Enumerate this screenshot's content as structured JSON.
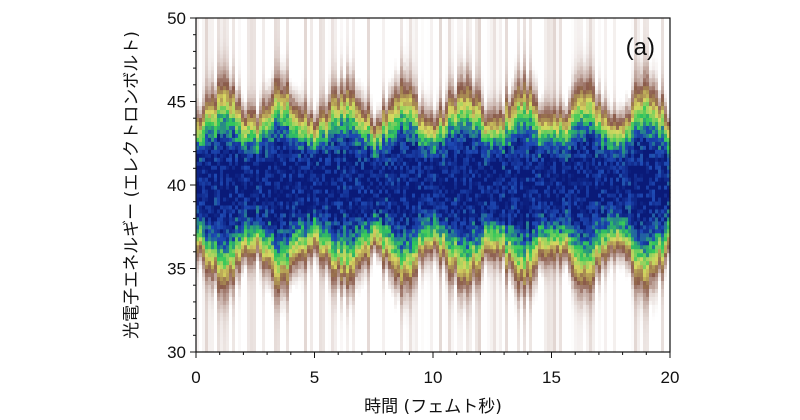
{
  "chart_data": {
    "type": "heatmap",
    "panel_label": "(a)",
    "xlabel": "時間 (フェムト秒)",
    "ylabel": "光電子エネルギー (エレクトロンボルト)",
    "xlim": [
      0,
      20
    ],
    "ylim": [
      30,
      50
    ],
    "x_ticks": [
      0,
      5,
      10,
      15,
      20
    ],
    "y_ticks": [
      30,
      35,
      40,
      45,
      50
    ],
    "grid": false,
    "colormap": [
      "#ffffff",
      "#8a5a4a",
      "#d8d860",
      "#32c85a",
      "#1e4ab4",
      "#0a1a78"
    ],
    "band": {
      "center_ev": 40,
      "half_width_min_ev": 3.2,
      "half_width_max_ev": 4.8,
      "modulation_period_fs": 2.6,
      "maxima_times_fs": [
        1.2,
        3.6,
        6.3,
        8.7,
        11.3,
        13.8,
        16.4,
        19.0
      ]
    }
  }
}
